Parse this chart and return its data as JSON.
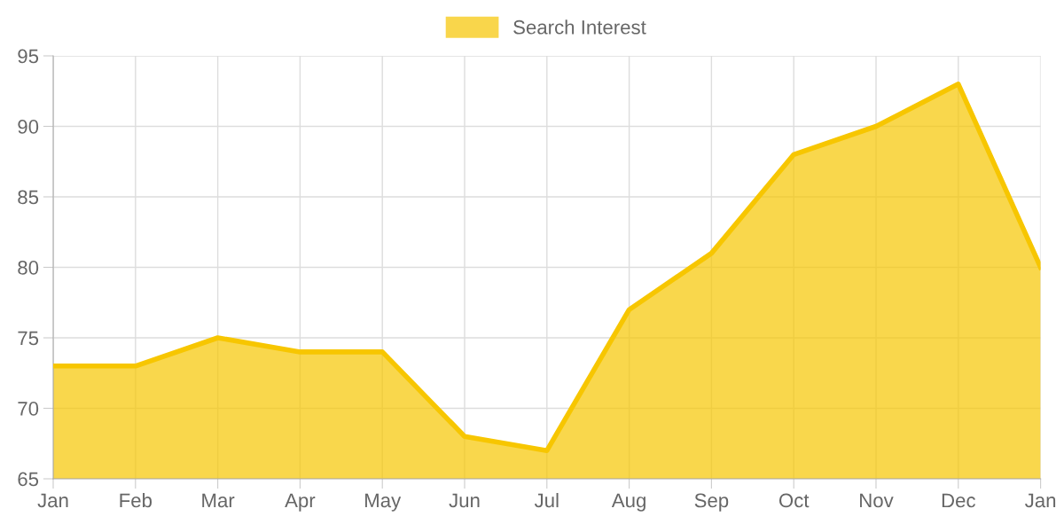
{
  "chart_data": {
    "type": "area",
    "categories": [
      "Jan",
      "Feb",
      "Mar",
      "Apr",
      "May",
      "Jun",
      "Jul",
      "Aug",
      "Sep",
      "Oct",
      "Nov",
      "Dec",
      "Jan"
    ],
    "series": [
      {
        "name": "Search Interest",
        "color": "#f7c600",
        "values": [
          73,
          73,
          75,
          74,
          74,
          68,
          67,
          77,
          81,
          88,
          90,
          93,
          80
        ]
      }
    ],
    "ylim": [
      65,
      95
    ],
    "yticks": [
      65,
      70,
      75,
      80,
      85,
      90,
      95
    ],
    "grid": true,
    "legend": "top"
  }
}
